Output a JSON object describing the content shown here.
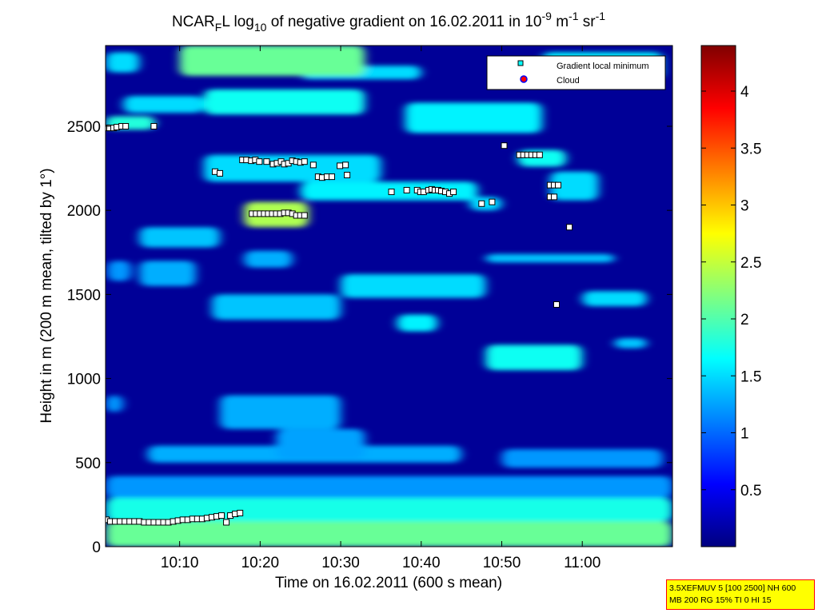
{
  "chart_data": {
    "type": "heatmap",
    "title": {
      "prefix": "NCAR",
      "prefix_sub": "F",
      "prefix_after": "L log",
      "log_sub": "10",
      "middle": " of negative gradient on 16.02.2011 in 10",
      "exp1": "-9",
      "unit1": " m",
      "exp2": "-1",
      "unit2": " sr",
      "exp3": "-1"
    },
    "xlabel": "Time on 16.02.2011 (600 s mean)",
    "ylabel": "Height in m (200 m mean, tilted by 1°)",
    "xlim_minutes": [
      0.8,
      71.2
    ],
    "ylim": [
      0,
      2980
    ],
    "x_ticks": [
      {
        "value": 10,
        "label": "10:10"
      },
      {
        "value": 20,
        "label": "10:20"
      },
      {
        "value": 30,
        "label": "10:30"
      },
      {
        "value": 40,
        "label": "10:40"
      },
      {
        "value": 50,
        "label": "10:50"
      },
      {
        "value": 60,
        "label": "11:00"
      }
    ],
    "y_ticks": [
      {
        "value": 0,
        "label": "0"
      },
      {
        "value": 500,
        "label": "500"
      },
      {
        "value": 1000,
        "label": "1000"
      },
      {
        "value": 1500,
        "label": "1500"
      },
      {
        "value": 2000,
        "label": "2000"
      },
      {
        "value": 2500,
        "label": "2500"
      }
    ],
    "colorbar": {
      "range": [
        0,
        4.4
      ],
      "ticks": [
        {
          "value": 0.5,
          "label": "0.5"
        },
        {
          "value": 1,
          "label": "1"
        },
        {
          "value": 1.5,
          "label": "1.5"
        },
        {
          "value": 2,
          "label": "2"
        },
        {
          "value": 2.5,
          "label": "2.5"
        },
        {
          "value": 3,
          "label": "3"
        },
        {
          "value": 3.5,
          "label": "3.5"
        },
        {
          "value": 4,
          "label": "4"
        }
      ],
      "colormap": "jet",
      "background_value": 0.1
    },
    "legend": {
      "placement": "top-right",
      "entries": [
        {
          "label": "Gradient local minimum",
          "marker": "square",
          "fill": "#00ffff",
          "edge": "#000000"
        },
        {
          "label": "Cloud",
          "marker": "circle",
          "fill": "#ff0000",
          "edge": "#0000ff"
        }
      ]
    },
    "heatmap_regions": [
      {
        "x": [
          0.8,
          71.2
        ],
        "y": [
          0,
          150
        ],
        "value": 2.1
      },
      {
        "x": [
          0.8,
          71.2
        ],
        "y": [
          150,
          290
        ],
        "value": 1.75
      },
      {
        "x": [
          0.8,
          71.2
        ],
        "y": [
          290,
          420
        ],
        "value": 1.2
      },
      {
        "x": [
          6,
          45
        ],
        "y": [
          500,
          600
        ],
        "value": 1.3
      },
      {
        "x": [
          15,
          30
        ],
        "y": [
          700,
          900
        ],
        "value": 1.3
      },
      {
        "x": [
          22,
          33
        ],
        "y": [
          520,
          700
        ],
        "value": 1.25
      },
      {
        "x": [
          0.8,
          3
        ],
        "y": [
          800,
          900
        ],
        "value": 1.2
      },
      {
        "x": [
          50,
          70
        ],
        "y": [
          470,
          580
        ],
        "value": 1.2
      },
      {
        "x": [
          14,
          30
        ],
        "y": [
          1350,
          1500
        ],
        "value": 1.4
      },
      {
        "x": [
          30,
          48
        ],
        "y": [
          1480,
          1620
        ],
        "value": 1.5
      },
      {
        "x": [
          5,
          12
        ],
        "y": [
          1550,
          1700
        ],
        "value": 1.3
      },
      {
        "x": [
          1,
          4
        ],
        "y": [
          1580,
          1700
        ],
        "value": 1.2
      },
      {
        "x": [
          37,
          42
        ],
        "y": [
          1280,
          1380
        ],
        "value": 1.6
      },
      {
        "x": [
          48,
          60
        ],
        "y": [
          1050,
          1200
        ],
        "value": 1.7
      },
      {
        "x": [
          60,
          68
        ],
        "y": [
          1430,
          1520
        ],
        "value": 1.5
      },
      {
        "x": [
          64,
          68
        ],
        "y": [
          1180,
          1240
        ],
        "value": 1.4
      },
      {
        "x": [
          48,
          64
        ],
        "y": [
          1690,
          1740
        ],
        "value": 1.4
      },
      {
        "x": [
          18,
          24
        ],
        "y": [
          1660,
          1760
        ],
        "value": 1.3
      },
      {
        "x": [
          5,
          15
        ],
        "y": [
          1780,
          1900
        ],
        "value": 1.4
      },
      {
        "x": [
          18,
          26
        ],
        "y": [
          1900,
          2050
        ],
        "value": 2.4
      },
      {
        "x": [
          25,
          47
        ],
        "y": [
          2060,
          2170
        ],
        "value": 1.6
      },
      {
        "x": [
          46,
          50
        ],
        "y": [
          2000,
          2080
        ],
        "value": 1.5
      },
      {
        "x": [
          13,
          35
        ],
        "y": [
          2170,
          2330
        ],
        "value": 1.5
      },
      {
        "x": [
          52,
          58
        ],
        "y": [
          2260,
          2360
        ],
        "value": 1.7
      },
      {
        "x": [
          56,
          62
        ],
        "y": [
          2060,
          2230
        ],
        "value": 1.5
      },
      {
        "x": [
          38,
          55
        ],
        "y": [
          2460,
          2640
        ],
        "value": 1.6
      },
      {
        "x": [
          0.8,
          7
        ],
        "y": [
          2480,
          2560
        ],
        "value": 1.8
      },
      {
        "x": [
          3,
          13
        ],
        "y": [
          2580,
          2680
        ],
        "value": 1.5
      },
      {
        "x": [
          13,
          33
        ],
        "y": [
          2570,
          2720
        ],
        "value": 1.7
      },
      {
        "x": [
          25,
          40
        ],
        "y": [
          2780,
          2860
        ],
        "value": 1.5
      },
      {
        "x": [
          10,
          33
        ],
        "y": [
          2800,
          2980
        ],
        "value": 2.1
      },
      {
        "x": [
          55,
          70
        ],
        "y": [
          2780,
          2940
        ],
        "value": 1.6
      },
      {
        "x": [
          0.8,
          5
        ],
        "y": [
          2820,
          2940
        ],
        "value": 1.5
      }
    ],
    "gradient_local_minimum": [
      {
        "x": 0.9,
        "y": 2490
      },
      {
        "x": 1.3,
        "y": 2490
      },
      {
        "x": 1.8,
        "y": 2490
      },
      {
        "x": 2.2,
        "y": 2495
      },
      {
        "x": 2.8,
        "y": 2500
      },
      {
        "x": 3.3,
        "y": 2500
      },
      {
        "x": 6.8,
        "y": 2500
      },
      {
        "x": 14.4,
        "y": 2230
      },
      {
        "x": 15.0,
        "y": 2220
      },
      {
        "x": 17.8,
        "y": 2300
      },
      {
        "x": 18.3,
        "y": 2300
      },
      {
        "x": 18.9,
        "y": 2295
      },
      {
        "x": 19.4,
        "y": 2300
      },
      {
        "x": 19.9,
        "y": 2290
      },
      {
        "x": 20.8,
        "y": 2290
      },
      {
        "x": 21.6,
        "y": 2275
      },
      {
        "x": 22.1,
        "y": 2280
      },
      {
        "x": 22.6,
        "y": 2290
      },
      {
        "x": 23.0,
        "y": 2275
      },
      {
        "x": 23.5,
        "y": 2280
      },
      {
        "x": 24.0,
        "y": 2295
      },
      {
        "x": 24.5,
        "y": 2290
      },
      {
        "x": 25.0,
        "y": 2285
      },
      {
        "x": 25.5,
        "y": 2290
      },
      {
        "x": 26.6,
        "y": 2270
      },
      {
        "x": 27.2,
        "y": 2200
      },
      {
        "x": 27.7,
        "y": 2195
      },
      {
        "x": 28.3,
        "y": 2200
      },
      {
        "x": 28.9,
        "y": 2200
      },
      {
        "x": 29.9,
        "y": 2265
      },
      {
        "x": 30.6,
        "y": 2270
      },
      {
        "x": 30.8,
        "y": 2210
      },
      {
        "x": 36.3,
        "y": 2110
      },
      {
        "x": 38.2,
        "y": 2120
      },
      {
        "x": 39.5,
        "y": 2120
      },
      {
        "x": 39.9,
        "y": 2110
      },
      {
        "x": 40.3,
        "y": 2110
      },
      {
        "x": 40.9,
        "y": 2120
      },
      {
        "x": 41.3,
        "y": 2125
      },
      {
        "x": 41.7,
        "y": 2120
      },
      {
        "x": 42.1,
        "y": 2120
      },
      {
        "x": 42.5,
        "y": 2115
      },
      {
        "x": 43.0,
        "y": 2110
      },
      {
        "x": 43.5,
        "y": 2100
      },
      {
        "x": 44.0,
        "y": 2110
      },
      {
        "x": 47.5,
        "y": 2040
      },
      {
        "x": 48.8,
        "y": 2050
      },
      {
        "x": 50.3,
        "y": 2385
      },
      {
        "x": 52.2,
        "y": 2330
      },
      {
        "x": 52.7,
        "y": 2330
      },
      {
        "x": 53.2,
        "y": 2330
      },
      {
        "x": 53.7,
        "y": 2330
      },
      {
        "x": 54.2,
        "y": 2330
      },
      {
        "x": 54.7,
        "y": 2330
      },
      {
        "x": 56.0,
        "y": 2150
      },
      {
        "x": 56.5,
        "y": 2150
      },
      {
        "x": 56.0,
        "y": 2080
      },
      {
        "x": 56.5,
        "y": 2080
      },
      {
        "x": 57.0,
        "y": 2150
      },
      {
        "x": 58.4,
        "y": 1900
      },
      {
        "x": 56.8,
        "y": 1440
      },
      {
        "x": 19.0,
        "y": 1980
      },
      {
        "x": 19.5,
        "y": 1980
      },
      {
        "x": 20.0,
        "y": 1980
      },
      {
        "x": 20.5,
        "y": 1980
      },
      {
        "x": 21.0,
        "y": 1980
      },
      {
        "x": 21.5,
        "y": 1980
      },
      {
        "x": 22.0,
        "y": 1980
      },
      {
        "x": 22.5,
        "y": 1980
      },
      {
        "x": 23.0,
        "y": 1985
      },
      {
        "x": 23.5,
        "y": 1985
      },
      {
        "x": 24.0,
        "y": 1980
      },
      {
        "x": 24.5,
        "y": 1970
      },
      {
        "x": 25.0,
        "y": 1970
      },
      {
        "x": 25.5,
        "y": 1970
      },
      {
        "x": 0.9,
        "y": 160
      },
      {
        "x": 1.4,
        "y": 150
      },
      {
        "x": 2.0,
        "y": 150
      },
      {
        "x": 2.6,
        "y": 150
      },
      {
        "x": 3.2,
        "y": 150
      },
      {
        "x": 3.8,
        "y": 150
      },
      {
        "x": 4.4,
        "y": 150
      },
      {
        "x": 5.0,
        "y": 150
      },
      {
        "x": 5.6,
        "y": 145
      },
      {
        "x": 6.2,
        "y": 145
      },
      {
        "x": 6.8,
        "y": 145
      },
      {
        "x": 7.4,
        "y": 145
      },
      {
        "x": 8.0,
        "y": 145
      },
      {
        "x": 8.6,
        "y": 145
      },
      {
        "x": 9.2,
        "y": 150
      },
      {
        "x": 9.8,
        "y": 155
      },
      {
        "x": 10.4,
        "y": 160
      },
      {
        "x": 11.0,
        "y": 160
      },
      {
        "x": 11.6,
        "y": 165
      },
      {
        "x": 12.2,
        "y": 165
      },
      {
        "x": 12.8,
        "y": 165
      },
      {
        "x": 13.4,
        "y": 170
      },
      {
        "x": 14.0,
        "y": 175
      },
      {
        "x": 14.6,
        "y": 180
      },
      {
        "x": 15.2,
        "y": 185
      },
      {
        "x": 15.8,
        "y": 145
      },
      {
        "x": 16.3,
        "y": 185
      },
      {
        "x": 16.9,
        "y": 195
      },
      {
        "x": 17.5,
        "y": 200
      }
    ],
    "cloud": []
  },
  "infobox": {
    "line1": "3.5XEFMUV 5 [100 2500] NH 600",
    "line2": "MB 200 RG 15% TI 0 HI 15"
  }
}
